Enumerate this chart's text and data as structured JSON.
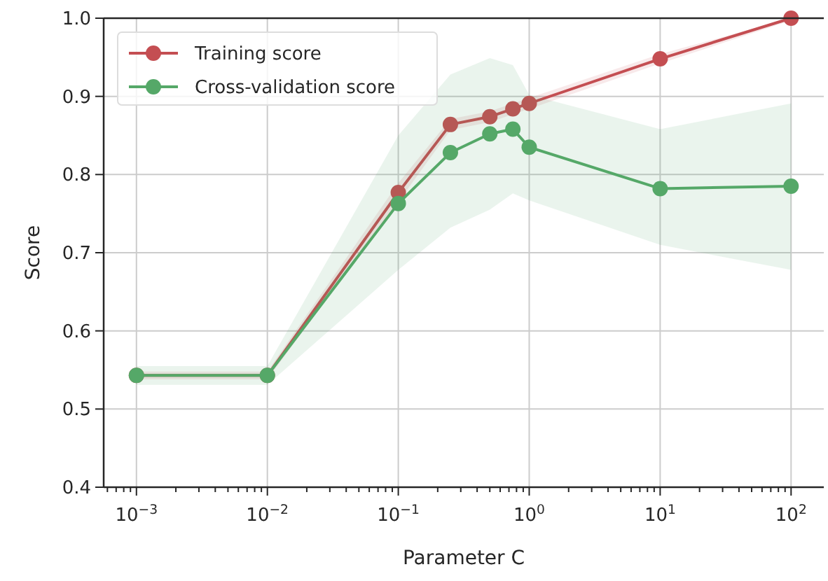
{
  "chart_data": {
    "type": "line",
    "xlabel": "Parameter C",
    "ylabel": "Score",
    "log": "x",
    "grid": true,
    "legend": "top left",
    "marker": "circle",
    "line_style": "solid",
    "x": [
      0.001,
      0.01,
      0.1,
      0.25,
      0.5,
      0.75,
      1,
      10,
      100
    ],
    "series": [
      {
        "name": "Training score",
        "color": "#c44e52",
        "values": [
          0.543,
          0.543,
          0.777,
          0.864,
          0.874,
          0.884,
          0.891,
          0.948,
          1.0
        ],
        "lower": [
          0.538,
          0.538,
          0.765,
          0.857,
          0.867,
          0.877,
          0.884,
          0.942,
          0.997
        ],
        "upper": [
          0.548,
          0.548,
          0.789,
          0.871,
          0.881,
          0.891,
          0.898,
          0.954,
          1.0
        ]
      },
      {
        "name": "Cross-validation score",
        "color": "#55a868",
        "values": [
          0.543,
          0.543,
          0.763,
          0.828,
          0.852,
          0.858,
          0.835,
          0.782,
          0.785
        ],
        "lower": [
          0.531,
          0.531,
          0.678,
          0.732,
          0.755,
          0.776,
          0.767,
          0.71,
          0.678
        ],
        "upper": [
          0.555,
          0.555,
          0.85,
          0.928,
          0.949,
          0.94,
          0.902,
          0.858,
          0.891
        ]
      }
    ],
    "xlim": [
      0.000562,
      177.8
    ],
    "xticks": [
      {
        "value": 0.0006,
        "label": null
      },
      {
        "value": 0.0007,
        "label": null
      },
      {
        "value": 0.0008,
        "label": null
      },
      {
        "value": 0.0009,
        "label": null
      },
      {
        "value": 0.001,
        "label": "10$^{−3}$"
      },
      {
        "value": 0.002,
        "label": null
      },
      {
        "value": 0.003,
        "label": null
      },
      {
        "value": 0.004,
        "label": null
      },
      {
        "value": 0.005,
        "label": null
      },
      {
        "value": 0.006,
        "label": null
      },
      {
        "value": 0.007,
        "label": null
      },
      {
        "value": 0.008,
        "label": null
      },
      {
        "value": 0.009,
        "label": null
      },
      {
        "value": 0.01,
        "label": "10$^{−2}$"
      },
      {
        "value": 0.02,
        "label": null
      },
      {
        "value": 0.03,
        "label": null
      },
      {
        "value": 0.04,
        "label": null
      },
      {
        "value": 0.05,
        "label": null
      },
      {
        "value": 0.06,
        "label": null
      },
      {
        "value": 0.07,
        "label": null
      },
      {
        "value": 0.08,
        "label": null
      },
      {
        "value": 0.09,
        "label": null
      },
      {
        "value": 0.1,
        "label": "10$^{−1}$"
      },
      {
        "value": 0.2,
        "label": null
      },
      {
        "value": 0.3,
        "label": null
      },
      {
        "value": 0.4,
        "label": null
      },
      {
        "value": 0.5,
        "label": null
      },
      {
        "value": 0.6,
        "label": null
      },
      {
        "value": 0.7,
        "label": null
      },
      {
        "value": 0.8,
        "label": null
      },
      {
        "value": 0.9,
        "label": null
      },
      {
        "value": 1,
        "label": "10$^{0}$"
      },
      {
        "value": 2,
        "label": null
      },
      {
        "value": 3,
        "label": null
      },
      {
        "value": 4,
        "label": null
      },
      {
        "value": 5,
        "label": null
      },
      {
        "value": 6,
        "label": null
      },
      {
        "value": 7,
        "label": null
      },
      {
        "value": 8,
        "label": null
      },
      {
        "value": 9,
        "label": null
      },
      {
        "value": 10,
        "label": "10$^{1}$"
      },
      {
        "value": 20,
        "label": null
      },
      {
        "value": 30,
        "label": null
      },
      {
        "value": 40,
        "label": null
      },
      {
        "value": 50,
        "label": null
      },
      {
        "value": 60,
        "label": null
      },
      {
        "value": 70,
        "label": null
      },
      {
        "value": 80,
        "label": null
      },
      {
        "value": 90,
        "label": null
      },
      {
        "value": 100,
        "label": "10$^{2}$"
      }
    ],
    "ylim": [
      0.4,
      1.0
    ],
    "yticks": [
      0.4,
      0.5,
      0.6,
      0.7,
      0.8,
      0.9,
      {
        "value": 1,
        "label": "1.0"
      }
    ]
  }
}
